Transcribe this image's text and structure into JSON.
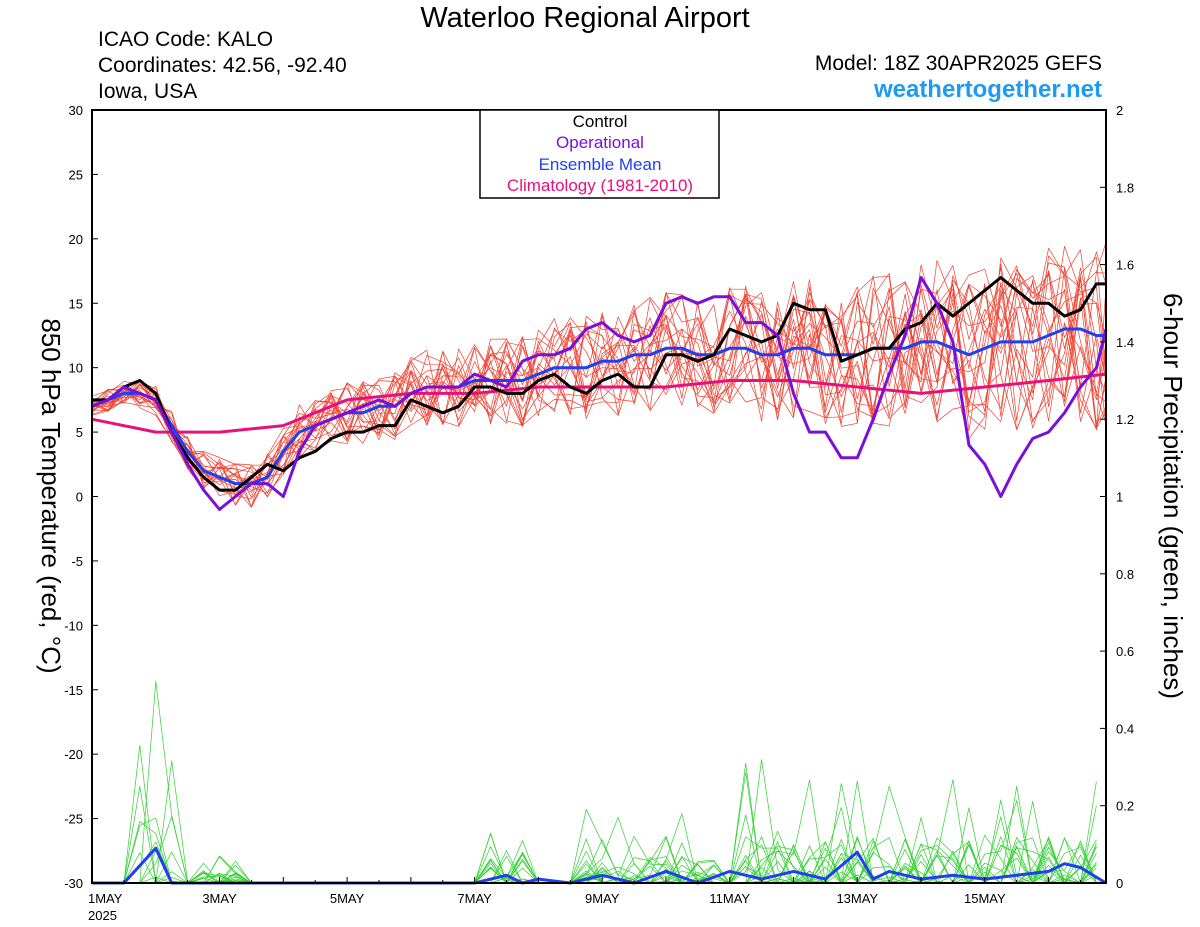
{
  "header": {
    "title": "Waterloo Regional Airport",
    "icao": "ICAO Code: KALO",
    "coordinates": "Coordinates: 42.56, -92.40",
    "location": "Iowa, USA",
    "model": "Model: 18Z 30APR2025 GEFS",
    "site": "weathertogether.net"
  },
  "colors": {
    "control": "#000000",
    "operational": "#7a10d8",
    "ensemble_mean": "#2040f0",
    "climatology": "#e8107a",
    "member_temp": "#f04030",
    "member_precip": "#30d030",
    "site": "#1e9bf0"
  },
  "chart_data": {
    "type": "line",
    "title": "Waterloo Regional Airport",
    "ylabel_left": "850 hPa Temperature (red, °C)",
    "ylabel_right": "6-hour Precipitation (green, inches)",
    "y_left_range": [
      -30,
      30
    ],
    "y_left_ticks": [
      "30",
      "25",
      "20",
      "15",
      "10",
      "5",
      "0",
      "-5",
      "-10",
      "-15",
      "-20",
      "-25",
      "-30"
    ],
    "y_right_range": [
      0,
      2
    ],
    "y_right_ticks": [
      "2",
      "1.8",
      "1.6",
      "1.4",
      "1.2",
      "1",
      "0.8",
      "0.6",
      "0.4",
      "0.2",
      "0"
    ],
    "x_day_range": [
      1,
      16.9
    ],
    "x_ticks": [
      {
        "day": 1,
        "label": "1MAY",
        "sub": "2025"
      },
      {
        "day": 3,
        "label": "3MAY"
      },
      {
        "day": 5,
        "label": "5MAY"
      },
      {
        "day": 7,
        "label": "7MAY"
      },
      {
        "day": 9,
        "label": "9MAY"
      },
      {
        "day": 11,
        "label": "11MAY"
      },
      {
        "day": 13,
        "label": "13MAY"
      },
      {
        "day": 15,
        "label": "15MAY"
      }
    ],
    "legend": [
      "Control",
      "Operational",
      "Ensemble Mean",
      "Climatology (1981-2010)"
    ],
    "legend_position": "top-center",
    "series": [
      {
        "name": "Control",
        "axis": "left",
        "x": [
          1.0,
          1.25,
          1.5,
          1.75,
          2.0,
          2.25,
          2.5,
          2.75,
          3.0,
          3.25,
          3.5,
          3.75,
          4.0,
          4.25,
          4.5,
          4.75,
          5.0,
          5.25,
          5.5,
          5.75,
          6.0,
          6.25,
          6.5,
          6.75,
          7.0,
          7.25,
          7.5,
          7.75,
          8.0,
          8.25,
          8.5,
          8.75,
          9.0,
          9.25,
          9.5,
          9.75,
          10.0,
          10.25,
          10.5,
          10.75,
          11.0,
          11.25,
          11.5,
          11.75,
          12.0,
          12.25,
          12.5,
          12.75,
          13.0,
          13.25,
          13.5,
          13.75,
          14.0,
          14.25,
          14.5,
          14.75,
          15.0,
          15.25,
          15.5,
          15.75,
          16.0,
          16.25,
          16.5,
          16.75,
          16.9
        ],
        "values": [
          7.5,
          7.5,
          8.5,
          9.0,
          8.0,
          5.0,
          3.0,
          1.5,
          0.5,
          0.5,
          1.5,
          2.5,
          2.0,
          3.0,
          3.5,
          4.5,
          5.0,
          5.0,
          5.5,
          5.5,
          7.5,
          7.0,
          6.5,
          7.0,
          8.5,
          8.5,
          8.0,
          8.0,
          9.0,
          9.5,
          8.5,
          8.0,
          9.0,
          9.5,
          8.5,
          8.5,
          11.0,
          11.0,
          10.5,
          11.0,
          13.0,
          12.5,
          12.0,
          12.5,
          15.0,
          14.5,
          14.5,
          10.5,
          11.0,
          11.5,
          11.5,
          13.0,
          13.5,
          15.0,
          14.0,
          15.0,
          16.0,
          17.0,
          16.0,
          15.0,
          15.0,
          14.0,
          14.5,
          16.5,
          16.5
        ]
      },
      {
        "name": "Operational",
        "axis": "left",
        "x": [
          1.0,
          1.25,
          1.5,
          1.75,
          2.0,
          2.25,
          2.5,
          2.75,
          3.0,
          3.25,
          3.5,
          3.75,
          4.0,
          4.25,
          4.5,
          4.75,
          5.0,
          5.25,
          5.5,
          5.75,
          6.0,
          6.25,
          6.5,
          6.75,
          7.0,
          7.25,
          7.5,
          7.75,
          8.0,
          8.25,
          8.5,
          8.75,
          9.0,
          9.25,
          9.5,
          9.75,
          10.0,
          10.25,
          10.5,
          10.75,
          11.0,
          11.25,
          11.5,
          11.75,
          12.0,
          12.25,
          12.5,
          12.75,
          13.0,
          13.25,
          13.5,
          13.75,
          14.0,
          14.25,
          14.5,
          14.75,
          15.0,
          15.25,
          15.5,
          15.75,
          16.0,
          16.25,
          16.5,
          16.75,
          16.9
        ],
        "values": [
          7.0,
          7.5,
          8.5,
          8.0,
          7.5,
          5.0,
          2.5,
          0.5,
          -1.0,
          0.0,
          1.0,
          1.0,
          0.0,
          3.5,
          5.5,
          6.0,
          6.5,
          7.0,
          7.5,
          7.0,
          8.0,
          8.5,
          8.5,
          8.5,
          9.5,
          9.0,
          8.5,
          10.5,
          11.0,
          11.0,
          11.5,
          13.0,
          13.5,
          12.5,
          12.0,
          12.5,
          15.0,
          15.5,
          15.0,
          15.5,
          15.5,
          13.5,
          13.5,
          12.5,
          8.0,
          5.0,
          5.0,
          3.0,
          3.0,
          6.0,
          9.5,
          12.5,
          17.0,
          15.0,
          12.0,
          4.0,
          2.5,
          0.0,
          2.5,
          4.5,
          5.0,
          6.5,
          8.5,
          10.0,
          13.0
        ]
      },
      {
        "name": "Ensemble Mean",
        "axis": "left",
        "x": [
          1.0,
          1.25,
          1.5,
          1.75,
          2.0,
          2.25,
          2.5,
          2.75,
          3.0,
          3.25,
          3.5,
          3.75,
          4.0,
          4.25,
          4.5,
          4.75,
          5.0,
          5.25,
          5.5,
          5.75,
          6.0,
          6.25,
          6.5,
          6.75,
          7.0,
          7.25,
          7.5,
          7.75,
          8.0,
          8.25,
          8.5,
          8.75,
          9.0,
          9.25,
          9.5,
          9.75,
          10.0,
          10.25,
          10.5,
          10.75,
          11.0,
          11.25,
          11.5,
          11.75,
          12.0,
          12.25,
          12.5,
          12.75,
          13.0,
          13.25,
          13.5,
          13.75,
          14.0,
          14.25,
          14.5,
          14.75,
          15.0,
          15.25,
          15.5,
          15.75,
          16.0,
          16.25,
          16.5,
          16.75,
          16.9
        ],
        "values": [
          7.0,
          7.5,
          8.0,
          8.0,
          7.5,
          5.5,
          3.5,
          2.0,
          1.5,
          1.0,
          1.0,
          1.5,
          3.5,
          5.0,
          5.5,
          6.0,
          6.5,
          6.5,
          7.0,
          7.0,
          8.0,
          8.5,
          8.5,
          8.5,
          9.0,
          9.0,
          9.0,
          9.0,
          9.5,
          10.0,
          10.0,
          10.0,
          10.5,
          10.5,
          11.0,
          11.0,
          11.5,
          11.5,
          11.0,
          11.0,
          11.5,
          11.5,
          11.0,
          11.0,
          11.5,
          11.5,
          11.0,
          11.0,
          11.0,
          11.5,
          11.5,
          11.5,
          12.0,
          12.0,
          11.5,
          11.0,
          11.5,
          12.0,
          12.0,
          12.0,
          12.5,
          13.0,
          13.0,
          12.5,
          12.5
        ]
      },
      {
        "name": "Climatology (1981-2010)",
        "axis": "left",
        "x": [
          1.0,
          2.0,
          3.0,
          4.0,
          5.0,
          6.0,
          7.0,
          8.0,
          9.0,
          10.0,
          11.0,
          12.0,
          13.0,
          14.0,
          15.0,
          16.0,
          16.9
        ],
        "values": [
          6.0,
          5.0,
          5.0,
          5.5,
          7.5,
          8.0,
          8.0,
          8.5,
          8.5,
          8.5,
          9.0,
          9.0,
          8.5,
          8.0,
          8.5,
          9.0,
          9.5
        ]
      },
      {
        "name": "Ensemble Mean Precip",
        "axis": "right",
        "x": [
          1.0,
          1.5,
          2.0,
          2.25,
          2.5,
          3.0,
          3.5,
          4.0,
          5.0,
          6.0,
          7.0,
          7.5,
          7.75,
          8.0,
          8.5,
          9.0,
          9.5,
          10.0,
          10.5,
          11.0,
          11.5,
          12.0,
          12.5,
          13.0,
          13.25,
          13.5,
          14.0,
          14.5,
          15.0,
          15.5,
          16.0,
          16.25,
          16.5,
          16.9
        ],
        "values": [
          0.0,
          0.0,
          0.09,
          0.0,
          0.0,
          0.0,
          0.0,
          0.0,
          0.0,
          0.0,
          0.0,
          0.02,
          0.0,
          0.01,
          0.0,
          0.02,
          0.0,
          0.03,
          0.0,
          0.03,
          0.01,
          0.03,
          0.01,
          0.08,
          0.01,
          0.03,
          0.01,
          0.02,
          0.01,
          0.02,
          0.03,
          0.05,
          0.04,
          0.0
        ]
      }
    ]
  }
}
